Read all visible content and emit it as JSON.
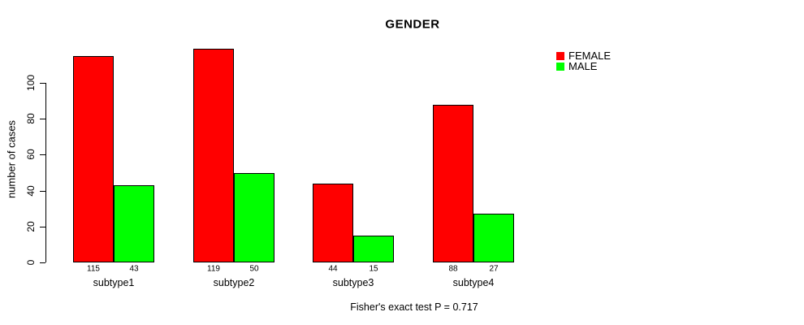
{
  "chart_data": {
    "type": "bar",
    "title": "GENDER",
    "xlabel": "",
    "ylabel": "number of cases",
    "categories": [
      "subtype1",
      "subtype2",
      "subtype3",
      "subtype4"
    ],
    "series": [
      {
        "name": "FEMALE",
        "color": "#FF0000",
        "values": [
          115,
          119,
          44,
          88
        ]
      },
      {
        "name": "MALE",
        "color": "#00FF00",
        "values": [
          43,
          50,
          15,
          27
        ]
      }
    ],
    "bar_value_labels": {
      "subtype1": {
        "FEMALE": 115,
        "MALE": 43
      },
      "subtype2": {
        "FEMALE": 119,
        "MALE": 50
      },
      "subtype3": {
        "FEMALE": 44,
        "MALE": 15
      },
      "subtype4": {
        "FEMALE": 88,
        "MALE": 27
      }
    },
    "yticks": [
      0,
      20,
      40,
      60,
      80,
      100
    ],
    "ylim": [
      0,
      120
    ],
    "grid": false,
    "legend_position": "top-right",
    "bar_border_color": "#000000",
    "annotation": "Fisher's exact test P = 0.717"
  }
}
